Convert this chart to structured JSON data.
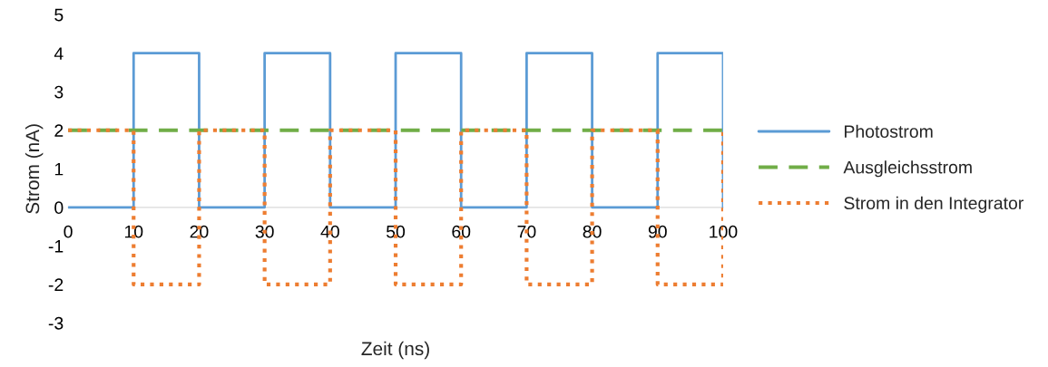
{
  "chart_data": {
    "type": "line",
    "xlabel": "Zeit (ns)",
    "ylabel": "Strom (nA)",
    "xlim": [
      0,
      100
    ],
    "ylim": [
      -3,
      5
    ],
    "xticks": [
      0,
      10,
      20,
      30,
      40,
      50,
      60,
      70,
      80,
      90,
      100
    ],
    "yticks": [
      -3,
      -2,
      -1,
      0,
      1,
      2,
      3,
      4,
      5
    ],
    "grid": false,
    "legend": "right",
    "marker": "none",
    "series": [
      {
        "name": "Photostrom",
        "color": "#5b9bd5",
        "line_style": "solid",
        "x": [
          0,
          10,
          10,
          20,
          20,
          30,
          30,
          40,
          40,
          50,
          50,
          60,
          60,
          70,
          70,
          80,
          80,
          90,
          90,
          100,
          100
        ],
        "values": [
          0,
          0,
          4,
          4,
          0,
          0,
          4,
          4,
          0,
          0,
          4,
          4,
          0,
          0,
          4,
          4,
          0,
          0,
          4,
          4,
          0
        ]
      },
      {
        "name": "Ausgleichsstrom",
        "color": "#70ad47",
        "line_style": "dashed",
        "x": [
          0,
          100
        ],
        "values": [
          2,
          2
        ]
      },
      {
        "name": "Strom in den Integrator",
        "color": "#ed7d31",
        "line_style": "dotted",
        "x": [
          0,
          10,
          10,
          20,
          20,
          30,
          30,
          40,
          40,
          50,
          50,
          60,
          60,
          70,
          70,
          80,
          80,
          90,
          90,
          100,
          100
        ],
        "values": [
          2,
          2,
          -2,
          -2,
          2,
          2,
          -2,
          -2,
          2,
          2,
          -2,
          -2,
          2,
          2,
          -2,
          -2,
          2,
          2,
          -2,
          -2,
          2
        ]
      }
    ]
  }
}
